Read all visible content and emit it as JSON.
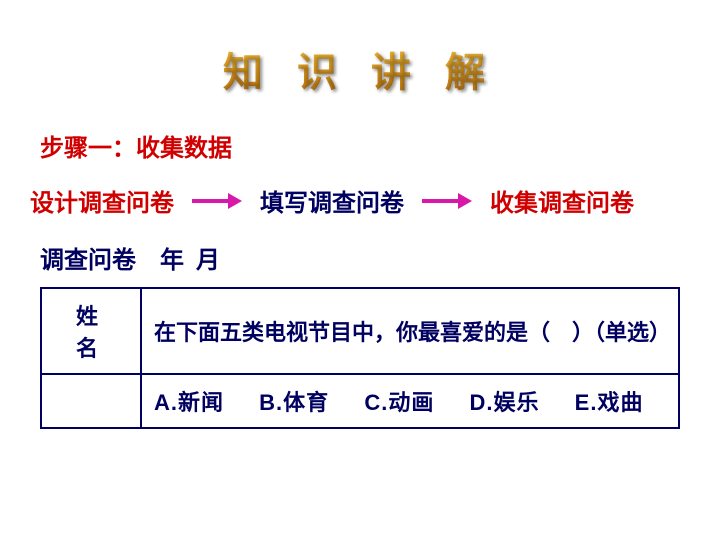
{
  "title": "知 识 讲 解",
  "colors": {
    "title_gradient_top": "#e8b020",
    "title_gradient_bottom": "#b86800",
    "red": "#d00000",
    "magenta": "#d818a8",
    "navy": "#000060",
    "blue": "#1020a0",
    "background": "#ffffff"
  },
  "step": {
    "label": "步骤一：收集数据",
    "color": "#d00000"
  },
  "flow": {
    "items": [
      {
        "text": "设计调查问卷",
        "color": "#d00000"
      },
      {
        "text": "填写调查问卷",
        "color": "#000060"
      },
      {
        "text": "收集调查问卷",
        "color": "#d00000"
      }
    ],
    "arrow_color": "#d818a8"
  },
  "survey": {
    "header": "调查问卷 年 月",
    "header_color": "#000060",
    "name_label": "姓 名",
    "question": "在下面五类电视节目中，你最喜爱的是（ ）（单选）",
    "options": [
      {
        "key": "A",
        "text": "新闻"
      },
      {
        "key": "B",
        "text": "体育"
      },
      {
        "key": "C",
        "text": "动画"
      },
      {
        "key": "D",
        "text": "娱乐"
      },
      {
        "key": "E",
        "text": "戏曲"
      }
    ],
    "border_color": "#000060",
    "text_color": "#000060"
  },
  "typography": {
    "title_fontsize": 40,
    "body_fontsize": 24,
    "table_fontsize": 22
  }
}
